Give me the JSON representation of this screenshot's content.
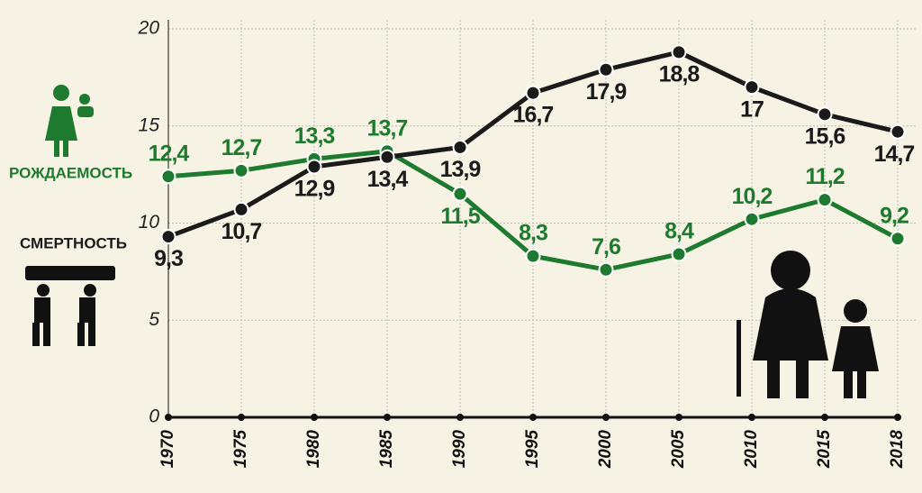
{
  "chart_data": {
    "type": "line",
    "categories": [
      "1970",
      "1975",
      "1980",
      "1985",
      "1990",
      "1995",
      "2000",
      "2005",
      "2010",
      "2015",
      "2018"
    ],
    "series": [
      {
        "name": "РОЖДАЕМОСТЬ",
        "color": "#1e7a2e",
        "values": [
          12.4,
          12.7,
          13.3,
          13.7,
          11.5,
          8.3,
          7.6,
          8.4,
          10.2,
          11.2,
          9.2
        ],
        "value_labels": [
          "12,4",
          "12,7",
          "13,3",
          "13,7",
          "11,5",
          "8,3",
          "7,6",
          "8,4",
          "10,2",
          "11,2",
          "9,2"
        ]
      },
      {
        "name": "СМЕРТНОСТЬ",
        "color": "#1a1a1a",
        "values": [
          9.3,
          10.7,
          12.9,
          13.4,
          13.9,
          16.7,
          17.9,
          18.8,
          17,
          15.6,
          14.7
        ],
        "value_labels": [
          "9,3",
          "10,7",
          "12,9",
          "13,4",
          "13,9",
          "16,7",
          "17,9",
          "18,8",
          "17",
          "15,6",
          "14,7"
        ]
      }
    ],
    "ylim": [
      0,
      20
    ],
    "yticks": [
      0,
      5,
      10,
      15,
      20
    ],
    "grid": true
  }
}
